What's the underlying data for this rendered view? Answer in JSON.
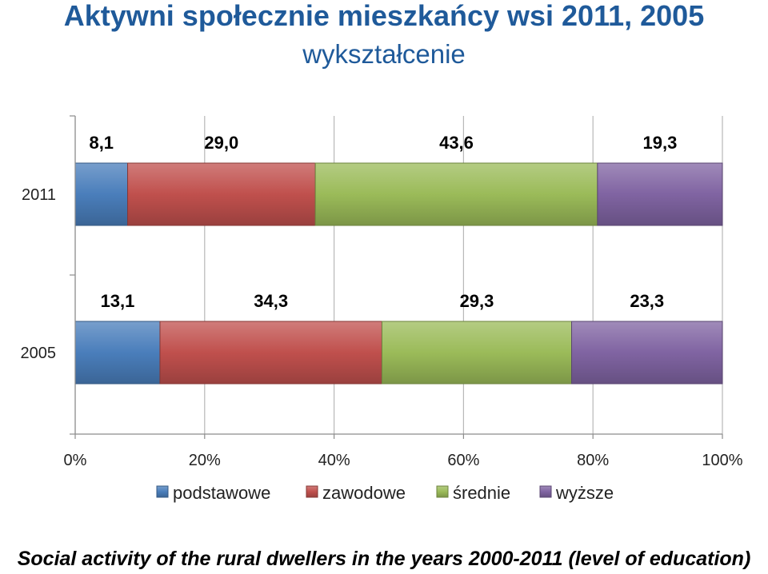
{
  "title": "Aktywni społecznie mieszkańcy wsi 2011, 2005",
  "subtitle": "wykształcenie",
  "caption": "Social activity of the rural dwellers in the years 2000-2011 (level of education)",
  "chart_data": {
    "type": "bar",
    "orientation": "horizontal",
    "stacked": true,
    "percent_stacked": true,
    "categories": [
      "2011",
      "2005"
    ],
    "series": [
      {
        "name": "podstawowe",
        "values": [
          8.1,
          13.1
        ],
        "labels": [
          "8,1",
          "13,1"
        ],
        "color": "#4A7EBB"
      },
      {
        "name": "zawodowe",
        "values": [
          29.0,
          34.3
        ],
        "labels": [
          "29,0",
          "34,3"
        ],
        "color": "#C0504D"
      },
      {
        "name": "średnie",
        "values": [
          43.6,
          29.3
        ],
        "labels": [
          "43,6",
          "29,3"
        ],
        "color": "#9BBB59"
      },
      {
        "name": "wyższe",
        "values": [
          19.3,
          23.3
        ],
        "labels": [
          "19,3",
          "23,3"
        ],
        "color": "#8064A2"
      }
    ],
    "x_ticks": [
      "0%",
      "20%",
      "40%",
      "60%",
      "80%",
      "100%"
    ],
    "xlim": [
      0,
      100
    ],
    "grid": true,
    "legend": "bottom"
  }
}
